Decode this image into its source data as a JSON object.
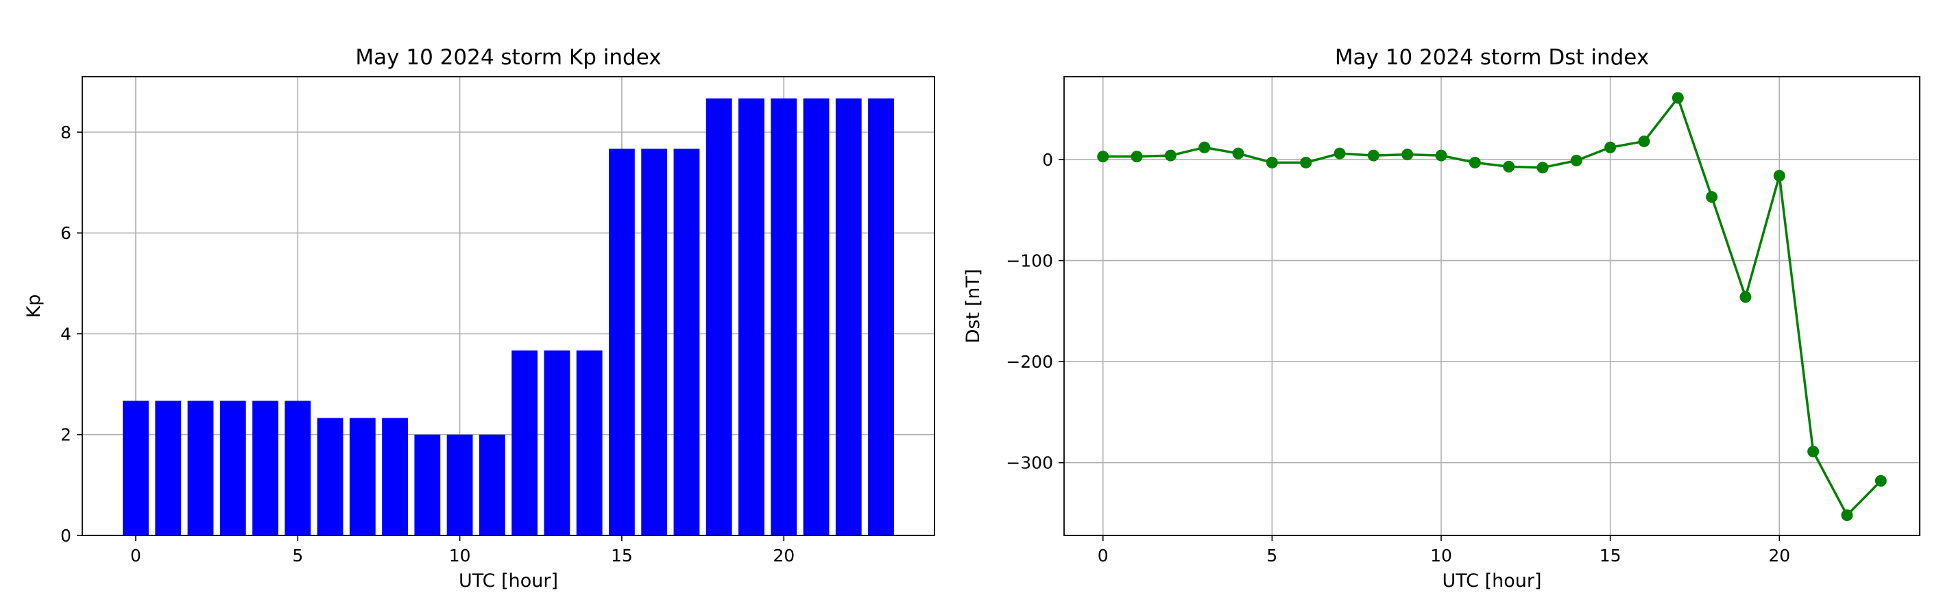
{
  "chart_data": [
    {
      "type": "bar",
      "title": "May 10 2024 storm Kp index",
      "xlabel": "UTC [hour]",
      "ylabel": "Kp",
      "x": [
        0,
        1,
        2,
        3,
        4,
        5,
        6,
        7,
        8,
        9,
        10,
        11,
        12,
        13,
        14,
        15,
        16,
        17,
        18,
        19,
        20,
        21,
        22,
        23
      ],
      "values": [
        2.67,
        2.67,
        2.67,
        2.67,
        2.67,
        2.67,
        2.33,
        2.33,
        2.33,
        2.0,
        2.0,
        2.0,
        3.67,
        3.67,
        3.67,
        7.67,
        7.67,
        7.67,
        8.67,
        8.67,
        8.67,
        8.67,
        8.67,
        8.67
      ],
      "xlim": [
        -1.65,
        24.65
      ],
      "ylim": [
        0,
        9.1
      ],
      "xticks": [
        0,
        5,
        10,
        15,
        20
      ],
      "yticks": [
        0,
        2,
        4,
        6,
        8
      ],
      "grid": true,
      "color": "#0000ff"
    },
    {
      "type": "line",
      "title": "May 10 2024 storm Dst index",
      "xlabel": "UTC [hour]",
      "ylabel": "Dst [nT]",
      "x": [
        0,
        1,
        2,
        3,
        4,
        5,
        6,
        7,
        8,
        9,
        10,
        11,
        12,
        13,
        14,
        15,
        16,
        17,
        18,
        19,
        20,
        21,
        22,
        23
      ],
      "values": [
        3,
        3,
        4,
        12,
        6,
        -3,
        -3,
        6,
        4,
        5,
        4,
        -3,
        -7,
        -8,
        -1,
        12,
        18,
        61,
        -37,
        -136,
        -16,
        -289,
        -352,
        -318
      ],
      "xlim": [
        -1.15,
        24.15
      ],
      "ylim": [
        -372,
        82
      ],
      "xticks": [
        0,
        5,
        10,
        15,
        20
      ],
      "yticks": [
        -300,
        -200,
        -100,
        0
      ],
      "grid": true,
      "marker": "circle",
      "color": "#008000"
    }
  ]
}
